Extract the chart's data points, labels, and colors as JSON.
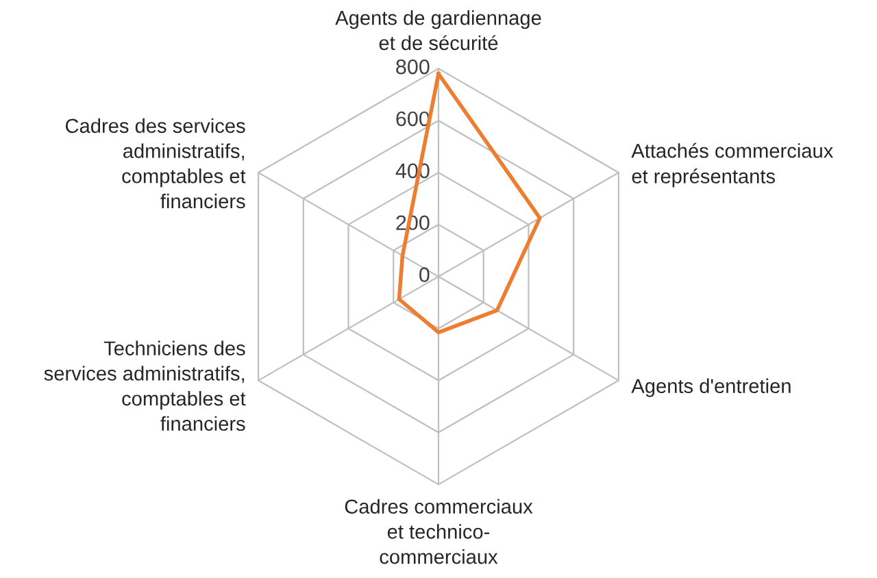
{
  "chart_data": {
    "type": "radar",
    "categories": [
      "Agents de gardiennage\net de sécurité",
      "Attachés commerciaux\net représentants",
      "Agents d'entretien",
      "Cadres commerciaux\net technico-\ncommerciaux",
      "Techniciens des\nservices administratifs,\ncomptables et\nfinanciers",
      "Cadres des services\nadministratifs,\ncomptables et\nfinanciers"
    ],
    "series": [
      {
        "color": "#ed7d31",
        "values": [
          780,
          450,
          260,
          215,
          175,
          160
        ]
      }
    ],
    "ylim": [
      0,
      800
    ],
    "yticks": [
      0,
      200,
      400,
      600,
      800
    ],
    "grid": true,
    "marker": "none",
    "line_style": "solid"
  }
}
